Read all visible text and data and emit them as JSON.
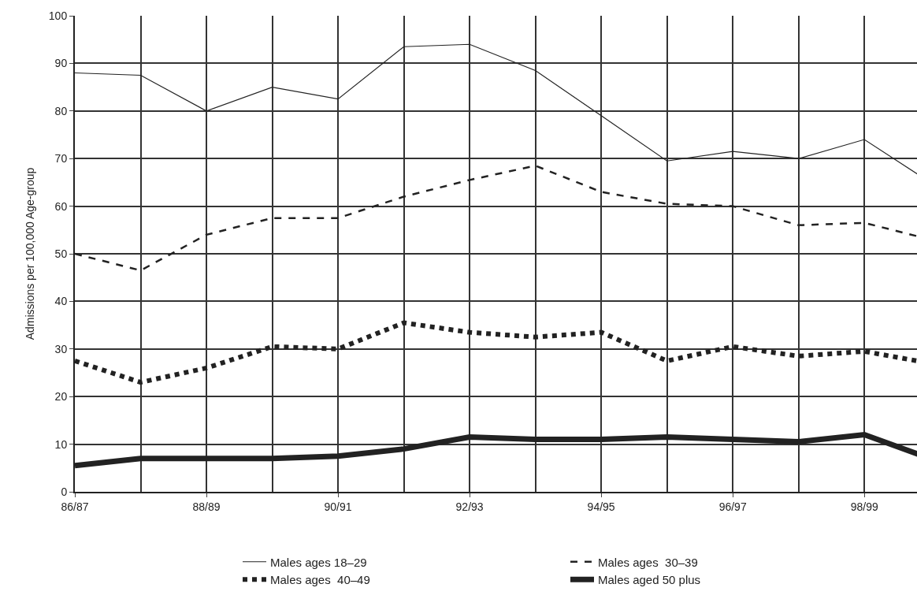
{
  "chart_data": {
    "type": "line",
    "ylabel": "Admissions per 100,000 Age-group",
    "categories": [
      "86/87",
      null,
      "88/89",
      null,
      "90/91",
      null,
      "92/93",
      null,
      "94/95",
      null,
      "96/97",
      null,
      "98/99",
      null
    ],
    "series": [
      {
        "name": "Males ages 18–29",
        "color": "#222222",
        "line_style": "solid",
        "values": [
          88,
          87.5,
          80,
          85,
          82.5,
          93.5,
          94,
          88.5,
          79,
          69.5,
          71.5,
          70,
          74,
          65
        ]
      },
      {
        "name": "Males ages  30–39",
        "color": "#222222",
        "line_style": "dashed",
        "values": [
          50,
          46.5,
          54,
          57.5,
          57.5,
          62,
          65.5,
          68.5,
          63,
          60.5,
          60,
          56,
          56.5,
          53
        ]
      },
      {
        "name": "Males ages  40–49",
        "color": "#222222",
        "line_style": "dotted",
        "values": [
          27.5,
          23,
          26,
          30.5,
          30,
          35.5,
          33.5,
          32.5,
          33.5,
          27.5,
          30.5,
          28.5,
          29.5,
          27
        ]
      },
      {
        "name": "Males aged 50 plus",
        "color": "#222222",
        "line_style": "solid",
        "values": [
          5.5,
          7,
          7,
          7,
          7.5,
          9,
          11.5,
          11,
          11,
          11.5,
          11,
          10.5,
          12,
          7
        ]
      }
    ],
    "ylim": [
      0,
      100
    ],
    "yticks": [
      0,
      10,
      20,
      30,
      40,
      50,
      60,
      70,
      80,
      90,
      100
    ],
    "grid": true,
    "legend": "bottom",
    "marker": "none"
  }
}
